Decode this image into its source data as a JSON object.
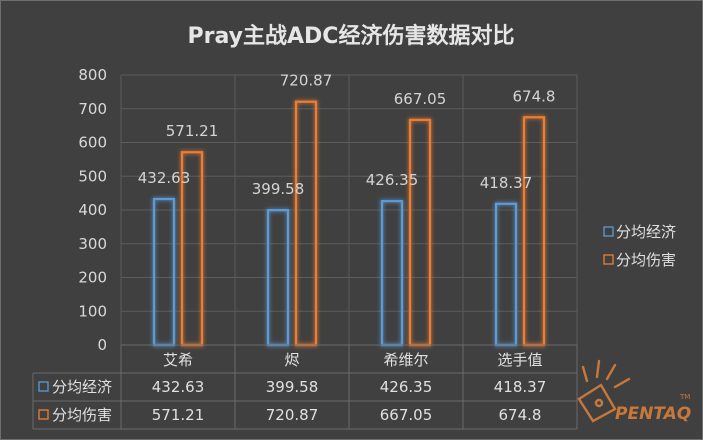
{
  "chart_data": {
    "type": "bar",
    "title": "Pray主战ADC经济伤害数据对比",
    "categories": [
      "艾希",
      "烬",
      "希维尔",
      "选手值"
    ],
    "series": [
      {
        "name": "分均经济",
        "values": [
          432.63,
          399.58,
          426.35,
          418.37
        ],
        "labels": [
          "432.63",
          "399.58",
          "426.35",
          "418.37"
        ],
        "color": "#5b9bd5"
      },
      {
        "name": "分均伤害",
        "values": [
          571.21,
          720.87,
          667.05,
          674.8
        ],
        "labels": [
          "571.21",
          "720.87",
          "667.05",
          "674.8"
        ],
        "color": "#ed7d31"
      }
    ],
    "ylim": [
      0,
      800
    ],
    "yticks": [
      "0",
      "100",
      "200",
      "300",
      "400",
      "500",
      "600",
      "700",
      "800"
    ],
    "grid": true,
    "legend": "right",
    "data_table": true
  },
  "watermark": {
    "text": "PENTAQ",
    "mark": "TM"
  }
}
